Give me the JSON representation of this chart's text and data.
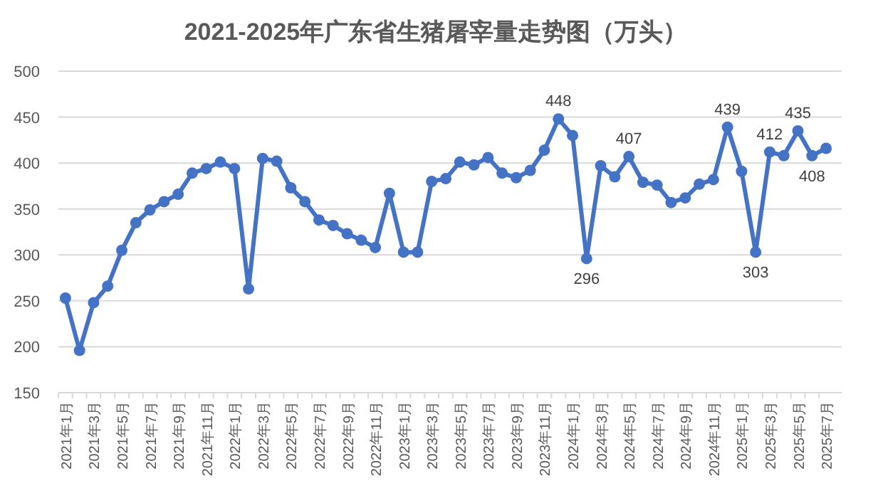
{
  "chart_data": {
    "type": "line",
    "title": "2021-2025年广东省生猪屠宰量走势图（万头）",
    "categories": [
      "2021年1月",
      null,
      "2021年3月",
      null,
      "2021年5月",
      null,
      "2021年7月",
      null,
      "2021年9月",
      null,
      "2021年11月",
      null,
      "2022年1月",
      null,
      "2022年3月",
      null,
      "2022年5月",
      null,
      "2022年7月",
      null,
      "2022年9月",
      null,
      "2022年11月",
      null,
      "2023年1月",
      null,
      "2023年3月",
      null,
      "2023年5月",
      null,
      "2023年7月",
      null,
      "2023年9月",
      null,
      "2023年11月",
      null,
      "2024年1月",
      null,
      "2024年3月",
      null,
      "2024年5月",
      null,
      "2024年7月",
      null,
      "2024年9月",
      null,
      "2024年11月",
      null,
      "2025年1月",
      null,
      "2025年3月",
      null,
      "2025年5月",
      null,
      "2025年7月"
    ],
    "series": [
      {
        "color": "#4472c4",
        "values": [
          253,
          196,
          248,
          266,
          305,
          335,
          349,
          358,
          366,
          389,
          394,
          401,
          394,
          263,
          405,
          402,
          373,
          358,
          338,
          332,
          323,
          316,
          308,
          367,
          303,
          303,
          380,
          383,
          401,
          398,
          406,
          389,
          384,
          392,
          414,
          448,
          430,
          296,
          397,
          385,
          407,
          379,
          376,
          357,
          362,
          377,
          382,
          439,
          391,
          303,
          412,
          408,
          435,
          408,
          416
        ],
        "value_labels": [
          null,
          null,
          null,
          null,
          null,
          null,
          null,
          null,
          null,
          null,
          null,
          null,
          null,
          null,
          null,
          null,
          null,
          null,
          null,
          null,
          null,
          null,
          null,
          null,
          null,
          null,
          null,
          null,
          null,
          null,
          null,
          null,
          null,
          null,
          null,
          "448",
          null,
          "296",
          null,
          null,
          "407",
          null,
          null,
          null,
          null,
          null,
          null,
          "439",
          null,
          "303",
          "412",
          null,
          "435",
          "408",
          null
        ]
      }
    ],
    "ylim": [
      150,
      500
    ],
    "yticks": [
      150,
      200,
      250,
      300,
      350,
      400,
      450,
      500
    ],
    "grid": "y",
    "marker": "circle",
    "line_style": "solid"
  }
}
